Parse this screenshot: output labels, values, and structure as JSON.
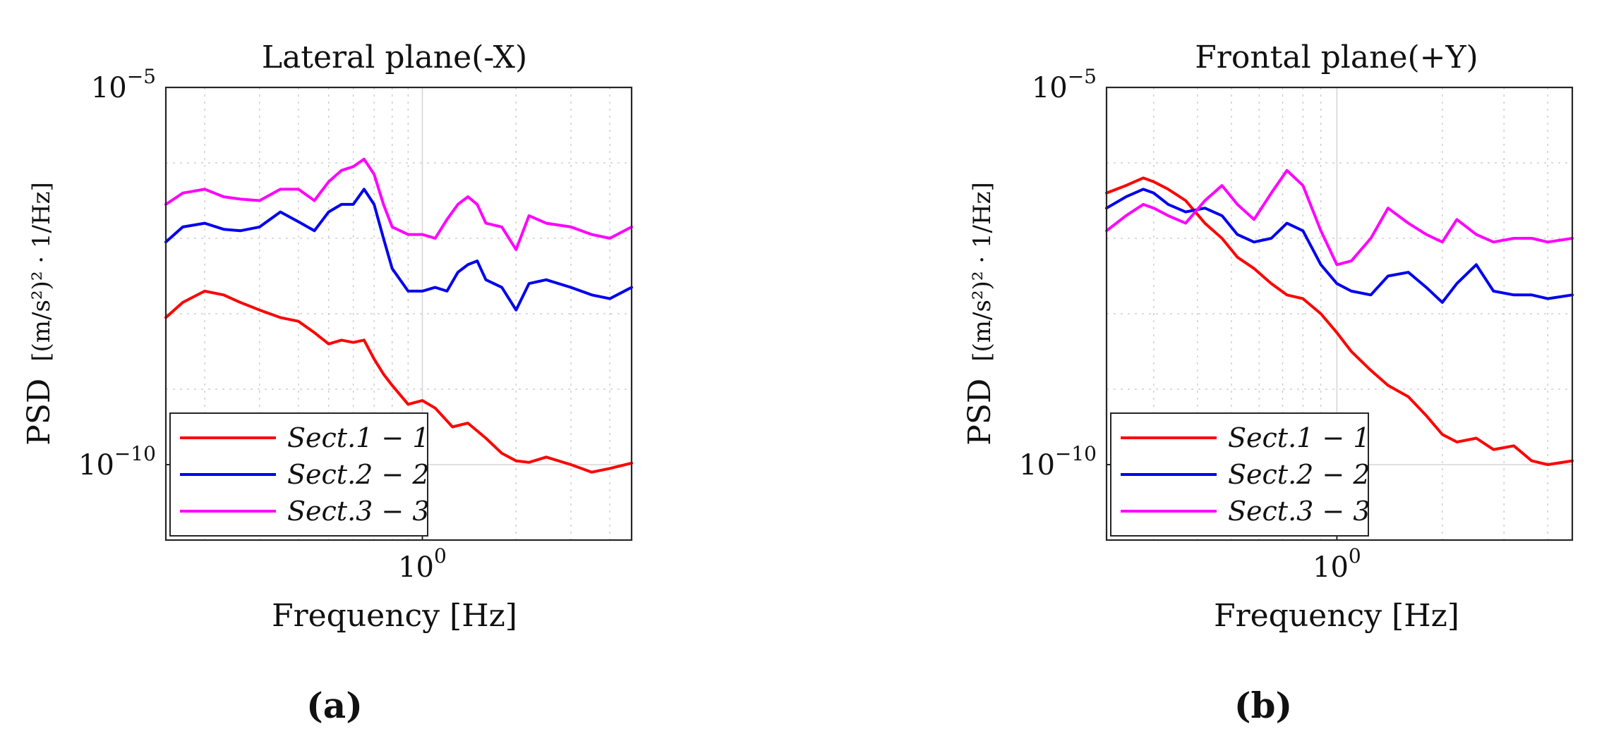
{
  "colors": {
    "sect1": "#ff0000",
    "sect2": "#0000ee",
    "sect3": "#ff00ff",
    "axis": "#262626",
    "grid": "#d0d0d0"
  },
  "chart_data": [
    {
      "type": "line",
      "panel_label": "(a)",
      "title": "Lateral plane(-X)",
      "xlabel": "Frequency [Hz]",
      "ylabel": "PSD",
      "ylabel_unit": "[(m/s²)² · 1/Hz]",
      "xscale": "log",
      "yscale": "log",
      "xlim": [
        0.15,
        4.7
      ],
      "ylim_log10": [
        -11,
        -5
      ],
      "xticks": [
        {
          "value": 1,
          "label": "10",
          "exp": "0"
        }
      ],
      "yticks": [
        {
          "value": -5,
          "label": "10",
          "exp": "−5"
        },
        {
          "value": -10,
          "label": "10",
          "exp": "−10"
        }
      ],
      "grid": true,
      "legend": "bottom-left",
      "series": [
        {
          "name": "Sect.1 − 1",
          "color_key": "sect1",
          "x": [
            0.15,
            0.17,
            0.2,
            0.23,
            0.26,
            0.3,
            0.35,
            0.4,
            0.45,
            0.5,
            0.55,
            0.6,
            0.65,
            0.7,
            0.75,
            0.8,
            0.9,
            1.0,
            1.1,
            1.25,
            1.4,
            1.6,
            1.8,
            2.0,
            2.2,
            2.5,
            3.0,
            3.5,
            4.0,
            4.7
          ],
          "log10_y": [
            -8.05,
            -7.85,
            -7.7,
            -7.75,
            -7.85,
            -7.95,
            -8.05,
            -8.1,
            -8.25,
            -8.4,
            -8.35,
            -8.38,
            -8.35,
            -8.6,
            -8.8,
            -8.95,
            -9.2,
            -9.15,
            -9.25,
            -9.5,
            -9.45,
            -9.65,
            -9.85,
            -9.95,
            -9.97,
            -9.9,
            -10.0,
            -10.1,
            -10.05,
            -9.98
          ]
        },
        {
          "name": "Sect.2 − 2",
          "color_key": "sect2",
          "x": [
            0.15,
            0.17,
            0.2,
            0.23,
            0.26,
            0.3,
            0.35,
            0.4,
            0.45,
            0.5,
            0.55,
            0.6,
            0.65,
            0.7,
            0.75,
            0.8,
            0.9,
            1.0,
            1.1,
            1.2,
            1.3,
            1.4,
            1.5,
            1.6,
            1.8,
            2.0,
            2.2,
            2.5,
            3.0,
            3.5,
            4.0,
            4.7
          ],
          "log10_y": [
            -7.05,
            -6.85,
            -6.8,
            -6.88,
            -6.9,
            -6.85,
            -6.65,
            -6.78,
            -6.9,
            -6.65,
            -6.55,
            -6.55,
            -6.35,
            -6.55,
            -7.0,
            -7.4,
            -7.7,
            -7.7,
            -7.65,
            -7.7,
            -7.45,
            -7.35,
            -7.3,
            -7.55,
            -7.65,
            -7.95,
            -7.6,
            -7.55,
            -7.65,
            -7.75,
            -7.8,
            -7.65
          ]
        },
        {
          "name": "Sect.3 − 3",
          "color_key": "sect3",
          "x": [
            0.15,
            0.17,
            0.2,
            0.23,
            0.26,
            0.3,
            0.35,
            0.4,
            0.45,
            0.5,
            0.55,
            0.6,
            0.65,
            0.7,
            0.75,
            0.8,
            0.9,
            1.0,
            1.1,
            1.2,
            1.3,
            1.4,
            1.5,
            1.6,
            1.8,
            2.0,
            2.2,
            2.5,
            3.0,
            3.5,
            4.0,
            4.7
          ],
          "log10_y": [
            -6.55,
            -6.4,
            -6.35,
            -6.45,
            -6.48,
            -6.5,
            -6.35,
            -6.35,
            -6.5,
            -6.25,
            -6.1,
            -6.05,
            -5.95,
            -6.15,
            -6.55,
            -6.85,
            -6.95,
            -6.95,
            -7.0,
            -6.75,
            -6.55,
            -6.45,
            -6.55,
            -6.8,
            -6.85,
            -7.15,
            -6.7,
            -6.8,
            -6.85,
            -6.95,
            -7.0,
            -6.85
          ]
        }
      ]
    },
    {
      "type": "line",
      "panel_label": "(b)",
      "title": "Frontal plane(+Y)",
      "xlabel": "Frequency [Hz]",
      "ylabel": "PSD",
      "ylabel_unit": "[(m/s²)² · 1/Hz]",
      "xscale": "log",
      "yscale": "log",
      "xlim": [
        0.22,
        4.7
      ],
      "ylim_log10": [
        -11,
        -5
      ],
      "xticks": [
        {
          "value": 1,
          "label": "10",
          "exp": "0"
        }
      ],
      "yticks": [
        {
          "value": -5,
          "label": "10",
          "exp": "−5"
        },
        {
          "value": -10,
          "label": "10",
          "exp": "−10"
        }
      ],
      "grid": true,
      "legend": "bottom-left",
      "series": [
        {
          "name": "Sect.1 − 1",
          "color_key": "sect1",
          "x": [
            0.22,
            0.25,
            0.28,
            0.3,
            0.33,
            0.37,
            0.42,
            0.47,
            0.52,
            0.58,
            0.65,
            0.72,
            0.8,
            0.9,
            1.0,
            1.1,
            1.25,
            1.4,
            1.6,
            1.8,
            2.0,
            2.2,
            2.5,
            2.8,
            3.2,
            3.6,
            4.0,
            4.7
          ],
          "log10_y": [
            -6.4,
            -6.3,
            -6.2,
            -6.25,
            -6.35,
            -6.5,
            -6.8,
            -7.0,
            -7.25,
            -7.4,
            -7.6,
            -7.75,
            -7.8,
            -8.0,
            -8.25,
            -8.5,
            -8.75,
            -8.95,
            -9.1,
            -9.35,
            -9.6,
            -9.7,
            -9.65,
            -9.8,
            -9.75,
            -9.95,
            -10.0,
            -9.95
          ]
        },
        {
          "name": "Sect.2 − 2",
          "color_key": "sect2",
          "x": [
            0.22,
            0.25,
            0.28,
            0.3,
            0.33,
            0.37,
            0.42,
            0.47,
            0.52,
            0.58,
            0.65,
            0.72,
            0.8,
            0.9,
            1.0,
            1.1,
            1.25,
            1.4,
            1.6,
            1.8,
            2.0,
            2.2,
            2.5,
            2.8,
            3.2,
            3.6,
            4.0,
            4.7
          ],
          "log10_y": [
            -6.6,
            -6.45,
            -6.35,
            -6.4,
            -6.55,
            -6.65,
            -6.6,
            -6.7,
            -6.95,
            -7.05,
            -7.0,
            -6.8,
            -6.9,
            -7.35,
            -7.6,
            -7.7,
            -7.75,
            -7.5,
            -7.45,
            -7.65,
            -7.85,
            -7.6,
            -7.35,
            -7.7,
            -7.75,
            -7.75,
            -7.8,
            -7.75
          ]
        },
        {
          "name": "Sect.3 − 3",
          "color_key": "sect3",
          "x": [
            0.22,
            0.25,
            0.28,
            0.3,
            0.33,
            0.37,
            0.42,
            0.47,
            0.52,
            0.58,
            0.65,
            0.72,
            0.8,
            0.9,
            1.0,
            1.1,
            1.25,
            1.4,
            1.6,
            1.8,
            2.0,
            2.2,
            2.5,
            2.8,
            3.2,
            3.6,
            4.0,
            4.7
          ],
          "log10_y": [
            -6.9,
            -6.7,
            -6.55,
            -6.6,
            -6.7,
            -6.8,
            -6.5,
            -6.3,
            -6.55,
            -6.75,
            -6.4,
            -6.1,
            -6.3,
            -6.9,
            -7.35,
            -7.3,
            -7.0,
            -6.6,
            -6.8,
            -6.95,
            -7.05,
            -6.75,
            -6.95,
            -7.05,
            -7.0,
            -7.0,
            -7.05,
            -7.0
          ]
        }
      ]
    }
  ]
}
